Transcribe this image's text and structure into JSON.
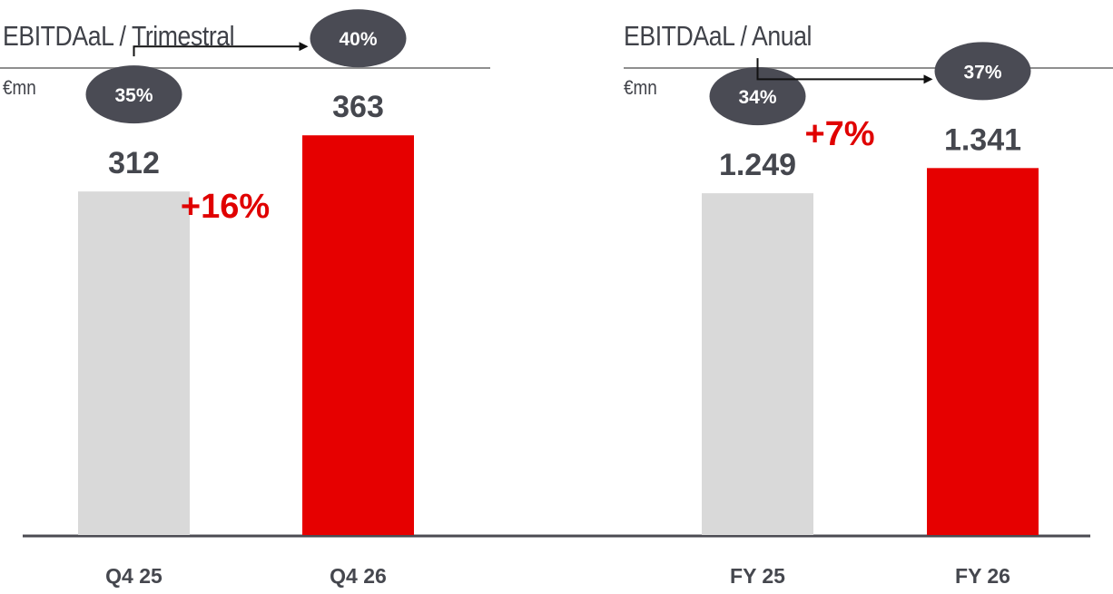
{
  "chart_data": [
    {
      "type": "bar",
      "title": "EBITDAaL / Trimestral",
      "unit": "€mn",
      "categories": [
        "Q4 25",
        "Q4 26"
      ],
      "values": [
        312,
        363
      ],
      "value_labels": [
        "312",
        "363"
      ],
      "margins": [
        "35%",
        "40%"
      ],
      "growth": "+16%",
      "colors": [
        "#d9d9d9",
        "#e60000"
      ],
      "ylim": [
        0,
        420
      ]
    },
    {
      "type": "bar",
      "title": "EBITDAaL / Anual",
      "unit": "€mn",
      "categories": [
        "FY 25",
        "FY 26"
      ],
      "values": [
        1249,
        1341
      ],
      "value_labels": [
        "1.249",
        "1.341"
      ],
      "margins": [
        "34%",
        "37%"
      ],
      "growth": "+7%",
      "colors": [
        "#d9d9d9",
        "#e60000"
      ],
      "ylim": [
        0,
        1690
      ]
    }
  ]
}
